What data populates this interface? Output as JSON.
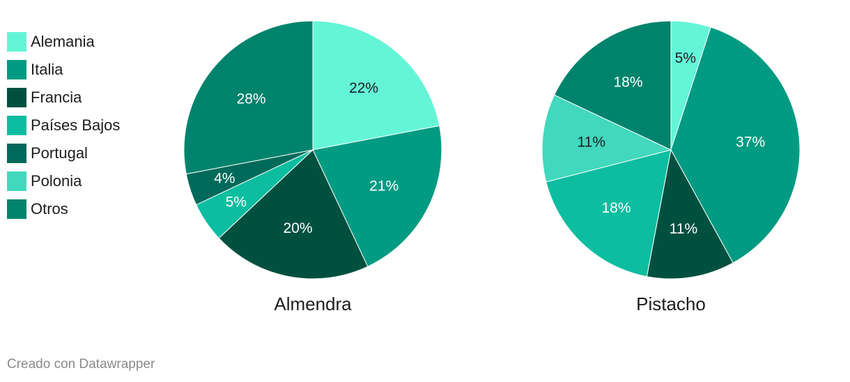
{
  "chart_data": [
    {
      "type": "pie",
      "title": "Almendra",
      "slices": [
        {
          "label": "Alemania",
          "value": 22,
          "color": "#64f5d7"
        },
        {
          "label": "Italia",
          "value": 21,
          "color": "#009b82"
        },
        {
          "label": "Francia",
          "value": 20,
          "color": "#005040"
        },
        {
          "label": "Países Bajos",
          "value": 5,
          "color": "#0dbda0"
        },
        {
          "label": "Portugal",
          "value": 4,
          "color": "#006a5a"
        },
        {
          "label": "Otros",
          "value": 28,
          "color": "#00836c"
        }
      ],
      "data_labels": [
        "22%",
        "21%",
        "20%",
        "5%",
        "4%",
        "28%"
      ]
    },
    {
      "type": "pie",
      "title": "Pistacho",
      "slices": [
        {
          "label": "Alemania",
          "value": 5,
          "color": "#64f5d7"
        },
        {
          "label": "Italia",
          "value": 37,
          "color": "#009b82"
        },
        {
          "label": "Francia",
          "value": 11,
          "color": "#005040"
        },
        {
          "label": "Países Bajos",
          "value": 18,
          "color": "#0dbda0"
        },
        {
          "label": "Polonia",
          "value": 11,
          "color": "#41d8bd"
        },
        {
          "label": "Otros",
          "value": 18,
          "color": "#00836c"
        }
      ],
      "data_labels": [
        "5%",
        "37%",
        "11%",
        "18%",
        "11%",
        "18%"
      ]
    }
  ],
  "legend": [
    {
      "label": "Alemania",
      "color": "#64f5d7"
    },
    {
      "label": "Italia",
      "color": "#009b82"
    },
    {
      "label": "Francia",
      "color": "#005040"
    },
    {
      "label": "Países Bajos",
      "color": "#0dbda0"
    },
    {
      "label": "Portugal",
      "color": "#006a5a"
    },
    {
      "label": "Polonia",
      "color": "#41d8bd"
    },
    {
      "label": "Otros",
      "color": "#00836c"
    }
  ],
  "legend_position": "left",
  "credit": "Creado con Datawrapper"
}
